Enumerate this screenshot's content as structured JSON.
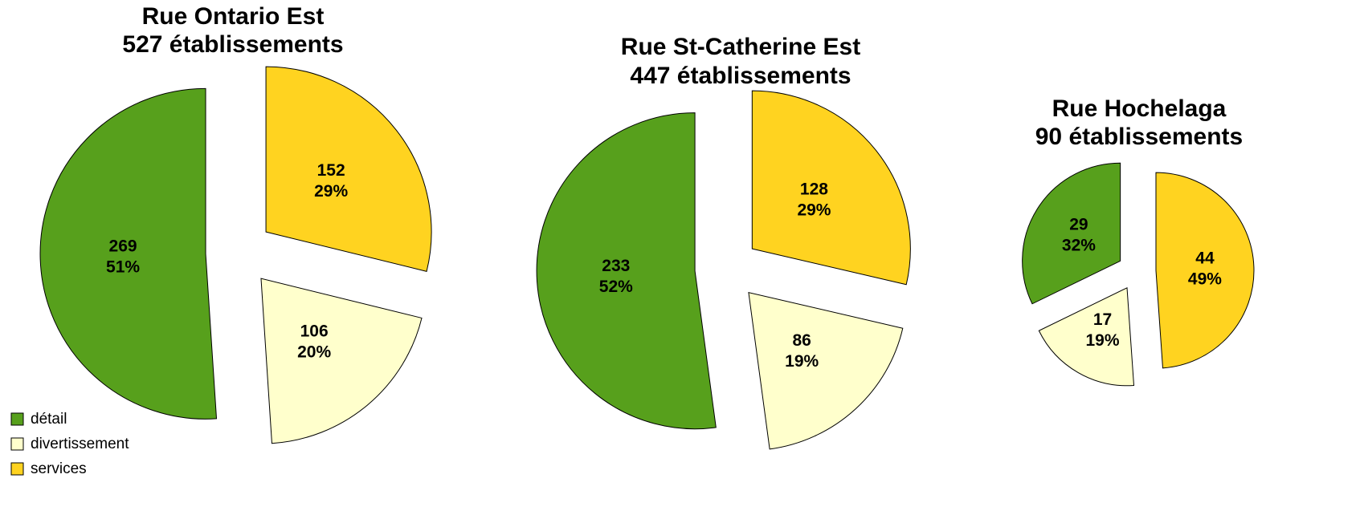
{
  "chart_data": [
    {
      "type": "pie",
      "title": [
        "Rue Ontario Est",
        "527 établissements"
      ],
      "categories": [
        "détail",
        "divertissement",
        "services"
      ],
      "values": [
        269,
        106,
        152
      ],
      "percent_labels": [
        "51%",
        "20%",
        "29%"
      ],
      "colors": [
        "#57a01c",
        "#ffffcc",
        "#ffd320"
      ]
    },
    {
      "type": "pie",
      "title": [
        "Rue St-Catherine Est",
        "447 établissements"
      ],
      "categories": [
        "détail",
        "divertissement",
        "services"
      ],
      "values": [
        233,
        86,
        128
      ],
      "percent_labels": [
        "52%",
        "19%",
        "29%"
      ],
      "colors": [
        "#57a01c",
        "#ffffcc",
        "#ffd320"
      ]
    },
    {
      "type": "pie",
      "title": [
        "Rue Hochelaga",
        "90 établissements"
      ],
      "categories": [
        "détail",
        "divertissement",
        "services"
      ],
      "values": [
        29,
        17,
        44
      ],
      "percent_labels": [
        "32%",
        "19%",
        "49%"
      ],
      "colors": [
        "#57a01c",
        "#ffffcc",
        "#ffd320"
      ]
    }
  ]
}
